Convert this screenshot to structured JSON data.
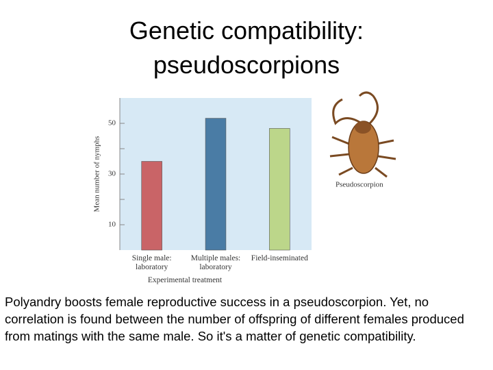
{
  "title": "Genetic compatibility: pseudoscorpions",
  "figure_label": "Pseudoscorpion",
  "body": "Polyandry boosts female reproductive success in a pseudoscorpion. Yet, no correlation is found between the number of offspring of different females produced from matings with the same male. So it's a matter of genetic compatibility.",
  "chart_data": {
    "type": "bar",
    "x_label": "Experimental treatment",
    "y_label": "Mean number of nymphs",
    "categories": [
      "Single male: laboratory",
      "Multiple males: laboratory",
      "Field-inseminated"
    ],
    "values": [
      35,
      52,
      48
    ],
    "colors": [
      "#c96467",
      "#4a7ca5",
      "#bcd68a"
    ],
    "background": "#d7e9f5",
    "ylim": [
      0,
      60
    ],
    "yticks": [
      10,
      30,
      50
    ],
    "yticks_minor": [
      20,
      40
    ]
  }
}
